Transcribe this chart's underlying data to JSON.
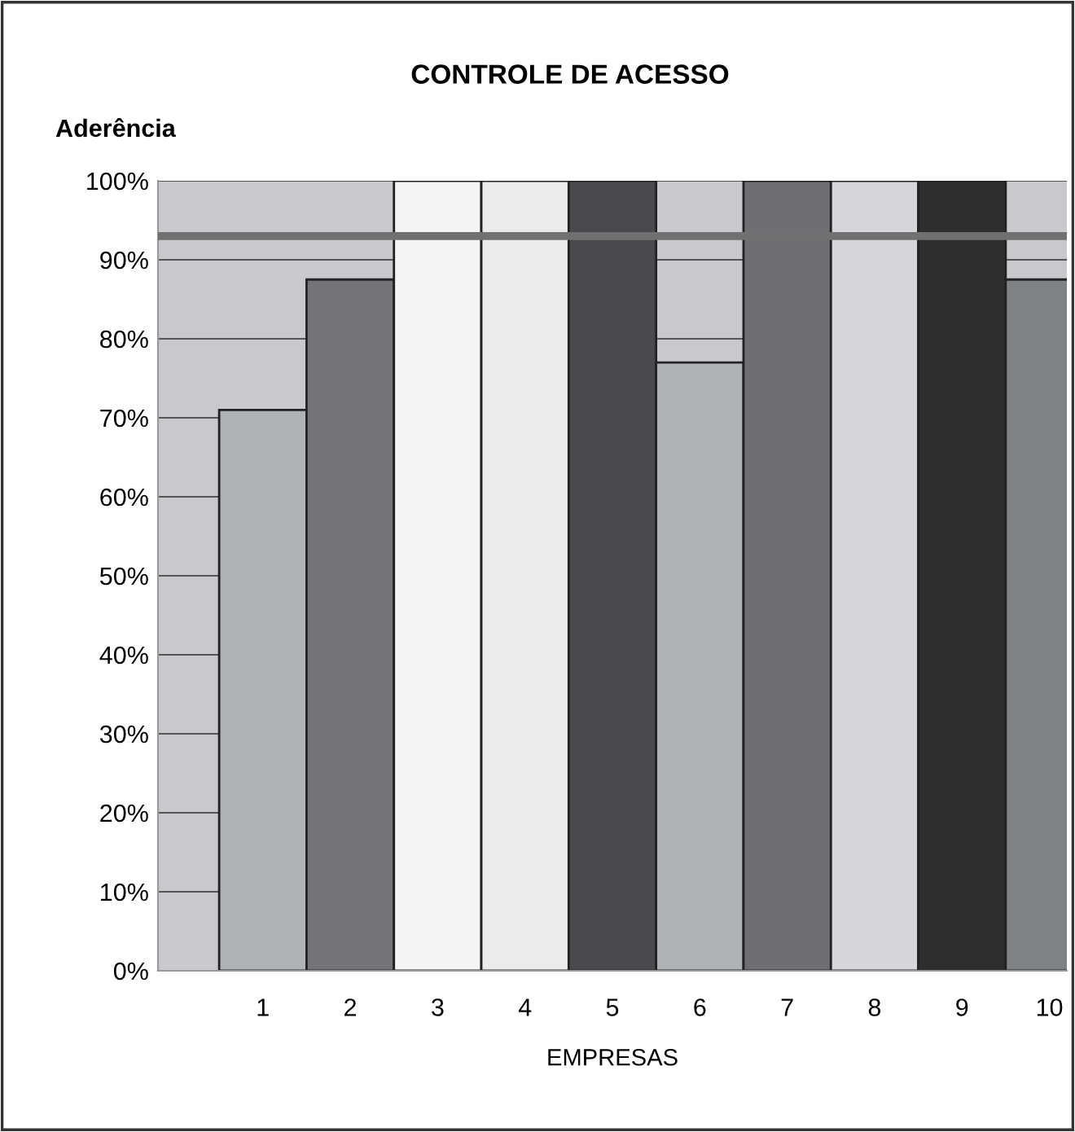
{
  "chart_data": {
    "type": "bar",
    "title": "CONTROLE DE ACESSO",
    "ylabel": "Aderência",
    "xlabel": "EMPRESAS",
    "categories": [
      "1",
      "2",
      "3",
      "4",
      "5",
      "6",
      "7",
      "8",
      "9",
      "10"
    ],
    "values": [
      71,
      87.5,
      100,
      100,
      100,
      77,
      100,
      100,
      100,
      87.5
    ],
    "colors": [
      "#b0b3b6",
      "#727477",
      "#f4f4f4",
      "#eaebeb",
      "#4a4a4e",
      "#b0b3b6",
      "#6e6f73",
      "#d4d6d9",
      "#302d2f",
      "#7f8285"
    ],
    "ylim": [
      0,
      100
    ],
    "yticks": [
      {
        "value": 0,
        "label": "0%"
      },
      {
        "value": 10,
        "label": "10%"
      },
      {
        "value": 20,
        "label": "20%"
      },
      {
        "value": 30,
        "label": "30%"
      },
      {
        "value": 40,
        "label": "40%"
      },
      {
        "value": 50,
        "label": "50%"
      },
      {
        "value": 60,
        "label": "60%"
      },
      {
        "value": 70,
        "label": "70%"
      },
      {
        "value": 80,
        "label": "80%"
      },
      {
        "value": 90,
        "label": "90%"
      },
      {
        "value": 100,
        "label": "100%"
      }
    ],
    "ref_lines": [
      {
        "axis": "y",
        "value": 93,
        "color": "#707070"
      }
    ],
    "grid": "y"
  }
}
